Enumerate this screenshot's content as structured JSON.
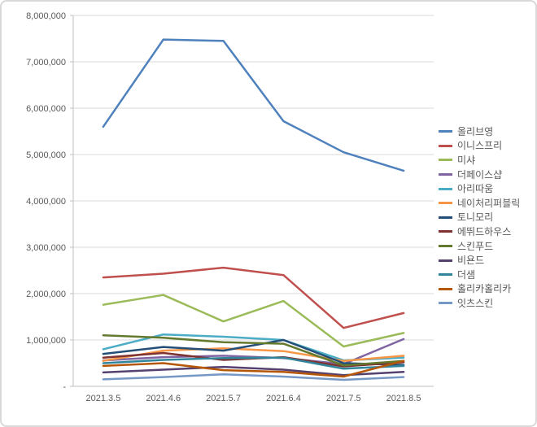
{
  "chart_data": {
    "type": "line",
    "title": "",
    "xlabel": "",
    "ylabel": "",
    "x": [
      "2021.3.5",
      "2021.4.6",
      "2021.5.7",
      "2021.6.4",
      "2021.7.5",
      "2021.8.5"
    ],
    "ylim": [
      0,
      8000000
    ],
    "ytick_step": 1000000,
    "ytick_labels": [
      "-",
      "1,000,000",
      "2,000,000",
      "3,000,000",
      "4,000,000",
      "5,000,000",
      "6,000,000",
      "7,000,000",
      "8,000,000"
    ],
    "grid": true,
    "legend_position": "right",
    "series": [
      {
        "name": "올리브영",
        "color": "#4F81BD",
        "values": [
          5600000,
          7480000,
          7450000,
          5720000,
          5050000,
          4650000
        ]
      },
      {
        "name": "이니스프리",
        "color": "#C0504D",
        "values": [
          2350000,
          2430000,
          2560000,
          2400000,
          1260000,
          1580000
        ]
      },
      {
        "name": "미샤",
        "color": "#9BBB59",
        "values": [
          1760000,
          1970000,
          1400000,
          1840000,
          860000,
          1150000
        ]
      },
      {
        "name": "더페이스샵",
        "color": "#8064A2",
        "values": [
          560000,
          630000,
          660000,
          610000,
          480000,
          1020000
        ]
      },
      {
        "name": "아리따움",
        "color": "#4BACC6",
        "values": [
          800000,
          1120000,
          1070000,
          1000000,
          560000,
          620000
        ]
      },
      {
        "name": "네이처리퍼블릭",
        "color": "#F79646",
        "values": [
          550000,
          770000,
          820000,
          760000,
          550000,
          660000
        ]
      },
      {
        "name": "토니모리",
        "color": "#254E77",
        "values": [
          700000,
          850000,
          770000,
          1000000,
          500000,
          460000
        ]
      },
      {
        "name": "에뛰드하우스",
        "color": "#7E3231",
        "values": [
          620000,
          720000,
          570000,
          630000,
          430000,
          520000
        ]
      },
      {
        "name": "스킨푸드",
        "color": "#637A2E",
        "values": [
          1100000,
          1050000,
          950000,
          920000,
          450000,
          550000
        ]
      },
      {
        "name": "비욘드",
        "color": "#55416F",
        "values": [
          300000,
          360000,
          420000,
          360000,
          240000,
          310000
        ]
      },
      {
        "name": "더샘",
        "color": "#31859B",
        "values": [
          500000,
          570000,
          610000,
          620000,
          380000,
          440000
        ]
      },
      {
        "name": "홀리카홀리카",
        "color": "#B65708",
        "values": [
          440000,
          500000,
          350000,
          310000,
          210000,
          550000
        ]
      },
      {
        "name": "잇츠스킨",
        "color": "#7698C6",
        "values": [
          150000,
          200000,
          260000,
          210000,
          140000,
          200000
        ]
      }
    ]
  }
}
